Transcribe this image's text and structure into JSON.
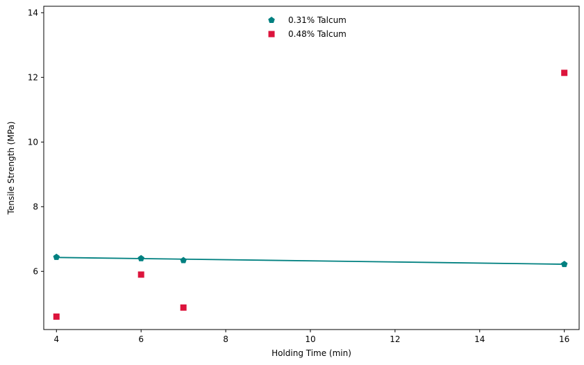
{
  "chart_data": {
    "type": "scatter",
    "title": "",
    "xlabel": "Holding Time (min)",
    "ylabel": "Tensile Strength (MPa)",
    "xlim": [
      3.7,
      16.35
    ],
    "ylim": [
      4.2,
      14.2
    ],
    "xticks": [
      4,
      6,
      8,
      10,
      12,
      14,
      16
    ],
    "yticks": [
      6,
      8,
      10,
      12,
      14
    ],
    "grid": false,
    "legend_position": "top-center",
    "series": [
      {
        "name": "0.31% Talcum",
        "marker": "pentagon",
        "color": "#008080",
        "x": [
          4,
          6,
          7,
          16
        ],
        "y": [
          6.44,
          6.4,
          6.34,
          6.22
        ],
        "trendline": {
          "x": [
            4,
            16
          ],
          "y": [
            6.43,
            6.22
          ]
        }
      },
      {
        "name": "0.48% Talcum",
        "marker": "square",
        "color": "#dc143c",
        "x": [
          4,
          6,
          7,
          16
        ],
        "y": [
          4.6,
          5.9,
          4.88,
          12.14
        ]
      }
    ]
  }
}
